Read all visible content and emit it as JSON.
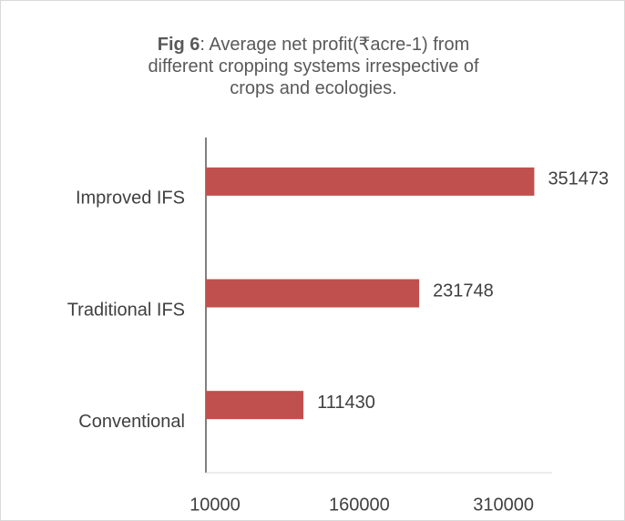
{
  "chart_data": {
    "type": "bar",
    "orientation": "horizontal",
    "title": [
      "Fig 6",
      ": Average net profit(₹acre-1) from different cropping systems irrespective of crops and ecologies."
    ],
    "categories": [
      "Improved IFS",
      "Traditional IFS",
      "Conventional"
    ],
    "values": [
      351473,
      231748,
      111430
    ],
    "color": "#c0504d",
    "xlim": [
      10000,
      370000
    ],
    "xticks": [
      10000,
      160000,
      310000
    ],
    "grid": false
  }
}
